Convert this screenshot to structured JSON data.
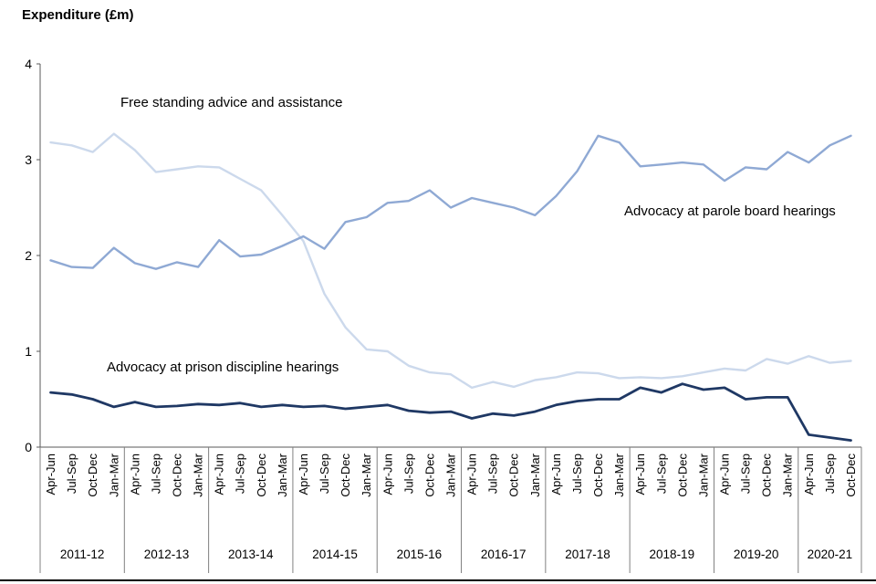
{
  "title": "Expenditure (£m)",
  "annotations": {
    "free_standing": "Free standing advice and assistance",
    "parole": "Advocacy at parole board hearings",
    "prison": "Advocacy at prison discipline hearings"
  },
  "chart_data": {
    "type": "line",
    "title": "Expenditure (£m)",
    "xlabel": "",
    "ylabel": "Expenditure (£m)",
    "ylim": [
      0,
      4
    ],
    "yticks": [
      0,
      1,
      2,
      3,
      4
    ],
    "grid": false,
    "legend_position": "inline-annotations",
    "quarter_names": [
      "Apr-Jun",
      "Jul-Sep",
      "Oct-Dec",
      "Jan-Mar"
    ],
    "years": [
      {
        "label": "2011-12",
        "quarters": 4
      },
      {
        "label": "2012-13",
        "quarters": 4
      },
      {
        "label": "2013-14",
        "quarters": 4
      },
      {
        "label": "2014-15",
        "quarters": 4
      },
      {
        "label": "2015-16",
        "quarters": 4
      },
      {
        "label": "2016-17",
        "quarters": 4
      },
      {
        "label": "2017-18",
        "quarters": 4
      },
      {
        "label": "2018-19",
        "quarters": 4
      },
      {
        "label": "2019-20",
        "quarters": 4
      },
      {
        "label": "2020-21",
        "quarters": 3
      }
    ],
    "series": [
      {
        "id": "free-standing-advice",
        "name": "Free standing advice and assistance",
        "color": "#ccd9ec",
        "width": 2.4,
        "values": [
          3.18,
          3.15,
          3.08,
          3.27,
          3.1,
          2.87,
          2.9,
          2.93,
          2.92,
          2.8,
          2.68,
          2.42,
          2.15,
          1.6,
          1.25,
          1.02,
          1.0,
          0.85,
          0.78,
          0.76,
          0.62,
          0.68,
          0.63,
          0.7,
          0.73,
          0.78,
          0.77,
          0.72,
          0.73,
          0.72,
          0.74,
          0.78,
          0.82,
          0.8,
          0.92,
          0.87,
          0.95,
          0.88,
          0.9
        ]
      },
      {
        "id": "parole-board-hearings",
        "name": "Advocacy at parole board hearings",
        "color": "#8fa9d4",
        "width": 2.4,
        "values": [
          1.95,
          1.88,
          1.87,
          2.08,
          1.92,
          1.86,
          1.93,
          1.88,
          2.16,
          1.99,
          2.01,
          2.1,
          2.2,
          2.07,
          2.35,
          2.4,
          2.55,
          2.57,
          2.68,
          2.5,
          2.6,
          2.55,
          2.5,
          2.42,
          2.62,
          2.88,
          3.25,
          3.18,
          2.93,
          2.95,
          2.97,
          2.95,
          2.78,
          2.92,
          2.9,
          3.08,
          2.97,
          3.15,
          3.25
        ]
      },
      {
        "id": "prison-discipline-hearings",
        "name": "Advocacy at prison discipline hearings",
        "color": "#1f3864",
        "width": 2.8,
        "values": [
          0.57,
          0.55,
          0.5,
          0.42,
          0.47,
          0.42,
          0.43,
          0.45,
          0.44,
          0.46,
          0.42,
          0.44,
          0.42,
          0.43,
          0.4,
          0.42,
          0.44,
          0.38,
          0.36,
          0.37,
          0.3,
          0.35,
          0.33,
          0.37,
          0.44,
          0.48,
          0.5,
          0.5,
          0.62,
          0.57,
          0.66,
          0.6,
          0.62,
          0.5,
          0.52,
          0.52,
          0.13,
          0.1,
          0.07
        ]
      }
    ]
  }
}
